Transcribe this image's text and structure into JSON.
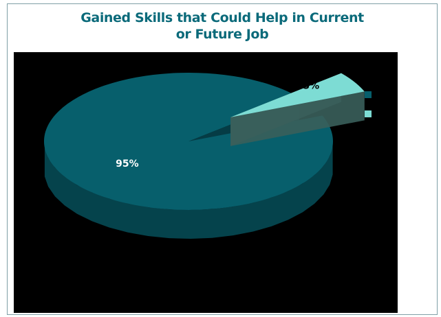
{
  "chart_data": {
    "type": "pie",
    "title_lines": [
      "Gained Skills that Could Help in Current",
      "or Future Job"
    ],
    "slices": [
      {
        "label": "",
        "value": 95,
        "display": "95%",
        "color": "#075f6c",
        "side_color": "#05434c",
        "exploded": false
      },
      {
        "label": "",
        "value": 5,
        "display": "5%",
        "color": "#7ddcd4",
        "side_color": "#3a5f5b",
        "exploded": true
      }
    ],
    "legend_position": "top-right",
    "style": "3d-exploded"
  }
}
